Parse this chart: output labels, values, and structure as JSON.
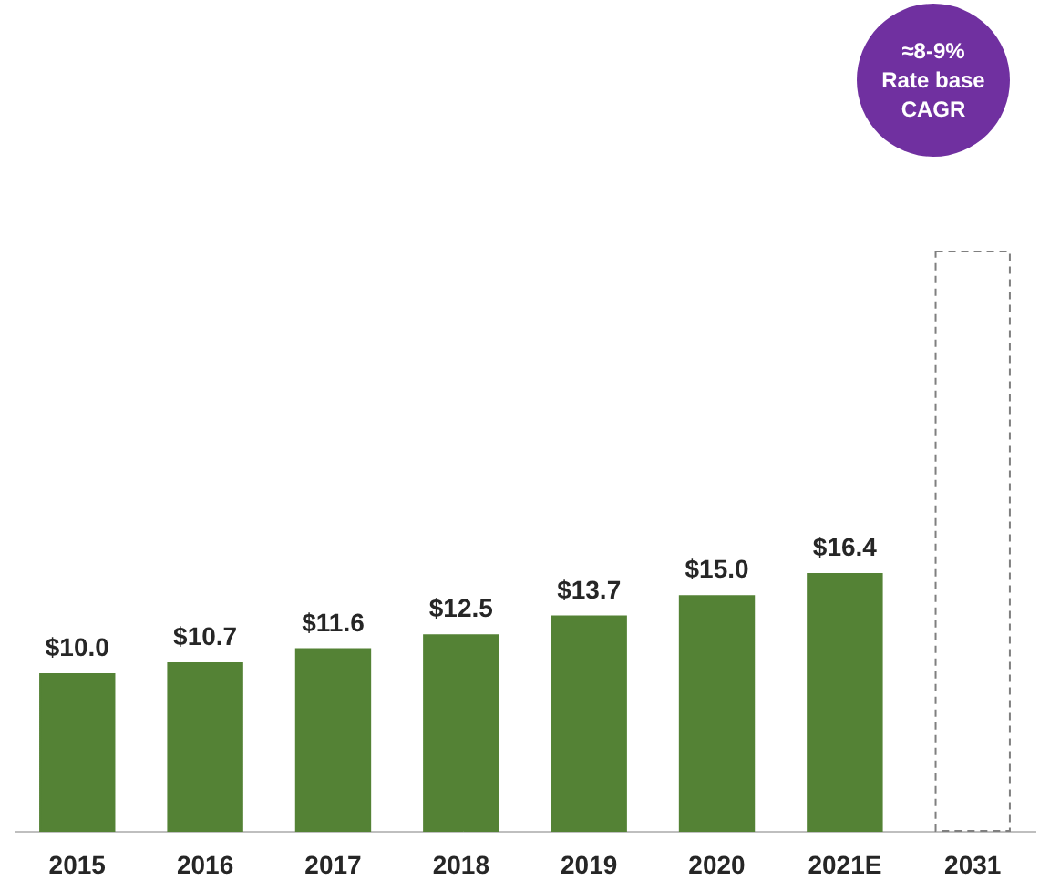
{
  "chart_data": {
    "type": "bar",
    "categories": [
      "2015",
      "2016",
      "2017",
      "2018",
      "2019",
      "2020",
      "2021E",
      "2031"
    ],
    "series": [
      {
        "color": "#548235",
        "values": [
          10.0,
          10.7,
          11.6,
          12.5,
          13.7,
          15.0,
          16.4,
          null
        ],
        "value_labels": [
          "$10.0",
          "$10.7",
          "$11.6",
          "$12.5",
          "$13.7",
          "$15.0",
          "$16.4",
          null
        ]
      },
      {
        "color": "#ffffff",
        "line_style": "dashed",
        "values": [
          null,
          null,
          null,
          null,
          null,
          null,
          null,
          37
        ]
      }
    ],
    "annotations": [
      "≈8-9% Rate base CAGR"
    ],
    "grid": false,
    "legend": false
  }
}
